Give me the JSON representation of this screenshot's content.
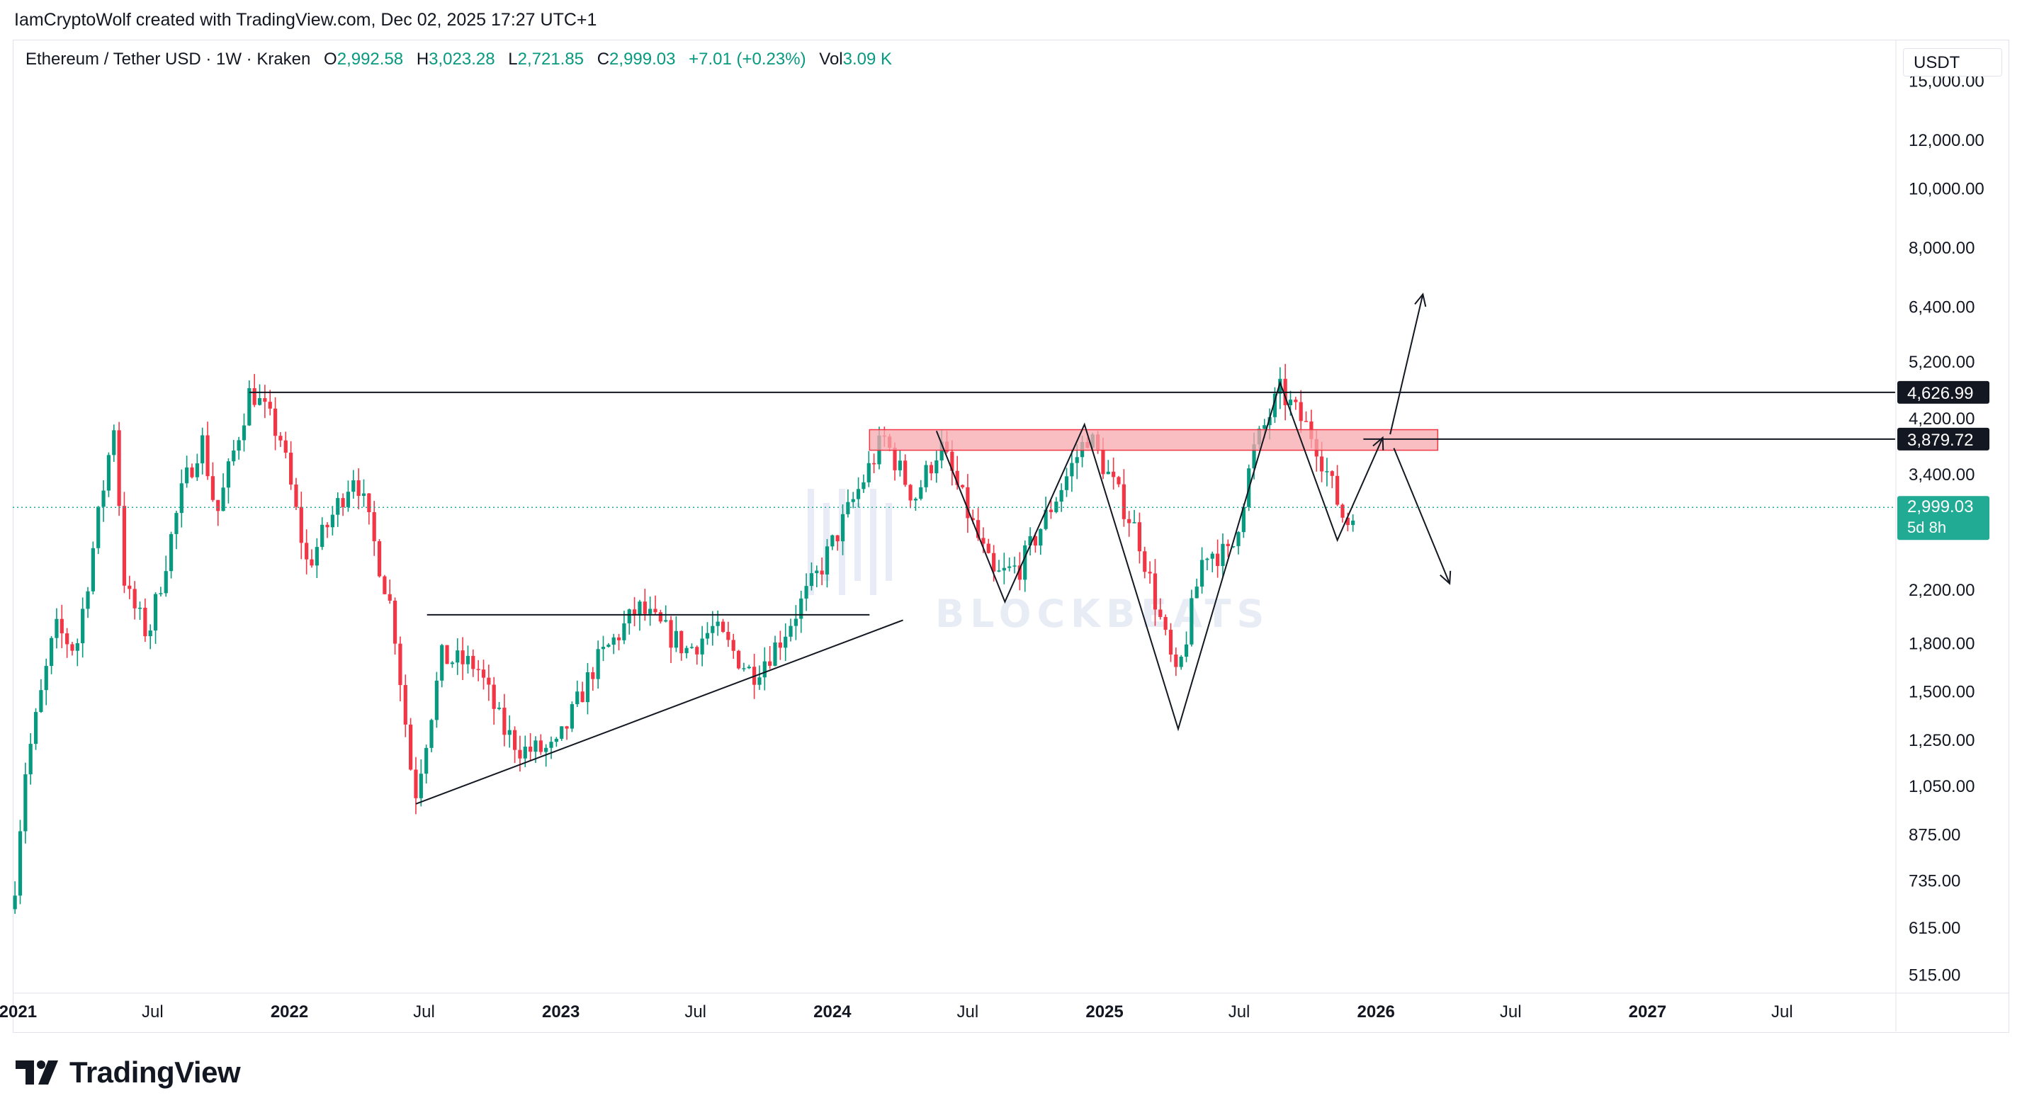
{
  "header": {
    "credit": "IamCryptoWolf created with TradingView.com, Dec 02, 2025 17:27 UTC+1"
  },
  "legend": {
    "symbol": "Ethereum / Tether USD · 1W · Kraken",
    "o_label": "O",
    "o_value": "2,992.58",
    "h_label": "H",
    "h_value": "3,023.28",
    "l_label": "L",
    "l_value": "2,721.85",
    "c_label": "C",
    "c_value": "2,999.03",
    "change": "+7.01 (+0.23%)",
    "vol_label": "Vol",
    "vol_value": "3.09 K"
  },
  "currency": "USDT",
  "brand": {
    "name": "TradingView"
  },
  "chart_data": {
    "type": "candlestick",
    "y_scale": "log",
    "ylim": [
      480,
      17500
    ],
    "xlim": [
      "2020-12-25",
      "2027-12-01"
    ],
    "x_ticks": [
      {
        "date": "2021-01-01",
        "label": "2021",
        "bold": true
      },
      {
        "date": "2021-07-01",
        "label": "Jul",
        "bold": false
      },
      {
        "date": "2022-01-01",
        "label": "2022",
        "bold": true
      },
      {
        "date": "2022-07-01",
        "label": "Jul",
        "bold": false
      },
      {
        "date": "2023-01-01",
        "label": "2023",
        "bold": true
      },
      {
        "date": "2023-07-01",
        "label": "Jul",
        "bold": false
      },
      {
        "date": "2024-01-01",
        "label": "2024",
        "bold": true
      },
      {
        "date": "2024-07-01",
        "label": "Jul",
        "bold": false
      },
      {
        "date": "2025-01-01",
        "label": "2025",
        "bold": true
      },
      {
        "date": "2025-07-01",
        "label": "Jul",
        "bold": false
      },
      {
        "date": "2026-01-01",
        "label": "2026",
        "bold": true
      },
      {
        "date": "2026-07-01",
        "label": "Jul",
        "bold": false
      },
      {
        "date": "2027-01-01",
        "label": "2027",
        "bold": true
      },
      {
        "date": "2027-07-01",
        "label": "Jul",
        "bold": false
      }
    ],
    "y_ticks": [
      {
        "value": 15000,
        "label": "15,000.00"
      },
      {
        "value": 12000,
        "label": "12,000.00"
      },
      {
        "value": 10000,
        "label": "10,000.00"
      },
      {
        "value": 8000,
        "label": "8,000.00"
      },
      {
        "value": 6400,
        "label": "6,400.00"
      },
      {
        "value": 5200,
        "label": "5,200.00"
      },
      {
        "value": 4200,
        "label": "4,200.00"
      },
      {
        "value": 3400,
        "label": "3,400.00"
      },
      {
        "value": 2200,
        "label": "2,200.00"
      },
      {
        "value": 1800,
        "label": "1,800.00"
      },
      {
        "value": 1500,
        "label": "1,500.00"
      },
      {
        "value": 1250,
        "label": "1,250.00"
      },
      {
        "value": 1050,
        "label": "1,050.00"
      },
      {
        "value": 875,
        "label": "875.00"
      },
      {
        "value": 735,
        "label": "735.00"
      },
      {
        "value": 615,
        "label": "615.00"
      },
      {
        "value": 515,
        "label": "515.00"
      }
    ],
    "price_labels": [
      {
        "value": 4626.99,
        "label": "4,626.99",
        "style": "dark"
      },
      {
        "value": 3879.72,
        "label": "3,879.72",
        "style": "dark"
      },
      {
        "value": 2999.03,
        "label": "2,999.03",
        "sub": "5d 8h",
        "style": "current"
      }
    ],
    "current_price": 2999.03,
    "colors": {
      "up": "#089981",
      "down": "#f23645",
      "current": "#22ab94",
      "zone": "#f7a8ad"
    },
    "price_path": [
      [
        "2020-12-28",
        730
      ],
      [
        "2021-01-10",
        1100
      ],
      [
        "2021-02-20",
        1900
      ],
      [
        "2021-03-20",
        1750
      ],
      [
        "2021-05-10",
        4100
      ],
      [
        "2021-05-25",
        2200
      ],
      [
        "2021-06-25",
        1850
      ],
      [
        "2021-08-10",
        3200
      ],
      [
        "2021-09-05",
        3900
      ],
      [
        "2021-09-25",
        2900
      ],
      [
        "2021-11-10",
        4700
      ],
      [
        "2021-12-20",
        3900
      ],
      [
        "2022-01-25",
        2400
      ],
      [
        "2022-03-30",
        3450
      ],
      [
        "2022-05-20",
        2000
      ],
      [
        "2022-06-18",
        1000
      ],
      [
        "2022-07-25",
        1700
      ],
      [
        "2022-09-10",
        1650
      ],
      [
        "2022-10-15",
        1300
      ],
      [
        "2022-11-10",
        1200
      ],
      [
        "2022-12-25",
        1200
      ],
      [
        "2023-02-15",
        1650
      ],
      [
        "2023-04-15",
        2050
      ],
      [
        "2023-06-20",
        1750
      ],
      [
        "2023-07-25",
        1900
      ],
      [
        "2023-09-15",
        1600
      ],
      [
        "2023-10-20",
        1800
      ],
      [
        "2023-12-10",
        2300
      ],
      [
        "2024-03-10",
        3900
      ],
      [
        "2024-04-20",
        3100
      ],
      [
        "2024-05-25",
        3800
      ],
      [
        "2024-08-05",
        2300
      ],
      [
        "2024-09-10",
        2400
      ],
      [
        "2024-12-10",
        3950
      ],
      [
        "2025-02-15",
        2700
      ],
      [
        "2025-04-08",
        1550
      ],
      [
        "2025-05-15",
        2550
      ],
      [
        "2025-06-20",
        2500
      ],
      [
        "2025-07-20",
        3700
      ],
      [
        "2025-08-25",
        4650
      ],
      [
        "2025-10-10",
        3900
      ],
      [
        "2025-11-22",
        2800
      ],
      [
        "2025-12-01",
        2999.03
      ]
    ],
    "annotations": {
      "hlines": [
        {
          "y": 4626.99,
          "from": "2021-11-08",
          "to": "2027-11-30"
        },
        {
          "y": 3879.72,
          "from": "2025-12-15",
          "to": "2027-11-30"
        },
        {
          "y": 2000,
          "from": "2022-07-05",
          "to": "2024-02-20"
        }
      ],
      "zone": {
        "y0": 3720,
        "y1": 4020,
        "from": "2024-02-20",
        "to": "2026-03-25"
      },
      "trendlines": [
        {
          "from": [
            "2022-06-20",
            980
          ],
          "to": [
            "2024-04-05",
            1960
          ]
        }
      ],
      "pattern": [
        [
          "2024-05-20",
          4000
        ],
        [
          "2024-08-20",
          2100
        ],
        [
          "2024-12-05",
          4100
        ],
        [
          "2025-04-10",
          1300
        ],
        [
          "2025-08-25",
          4800
        ],
        [
          "2025-11-10",
          2650
        ],
        [
          "2026-01-10",
          3900
        ]
      ],
      "arrows": [
        {
          "from": [
            "2026-01-20",
            3950
          ],
          "to": [
            "2026-03-05",
            6700
          ]
        },
        {
          "from": [
            "2026-01-25",
            3750
          ],
          "to": [
            "2026-04-10",
            2250
          ]
        }
      ]
    },
    "watermark": {
      "text": "BLOCKBEATS"
    }
  }
}
